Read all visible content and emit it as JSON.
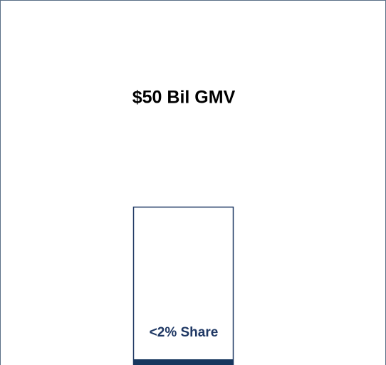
{
  "title": "$50 Bil GMV",
  "bar": {
    "label": "<2% Share"
  }
}
